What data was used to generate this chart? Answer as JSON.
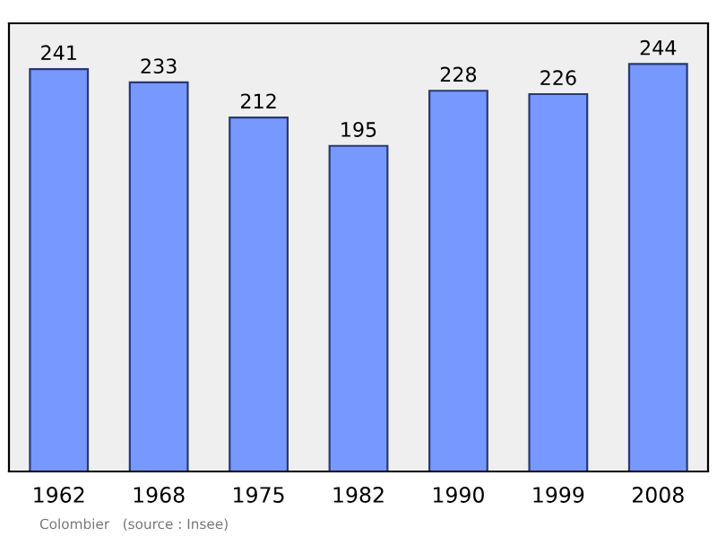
{
  "chart_data": {
    "type": "bar",
    "categories": [
      "1962",
      "1968",
      "1975",
      "1982",
      "1990",
      "1999",
      "2008"
    ],
    "values": [
      241,
      233,
      212,
      195,
      228,
      226,
      244
    ],
    "color": "#7799ff",
    "data_labels": true,
    "grid": false,
    "annotations": [
      "Colombier   (source : Insee)"
    ]
  }
}
